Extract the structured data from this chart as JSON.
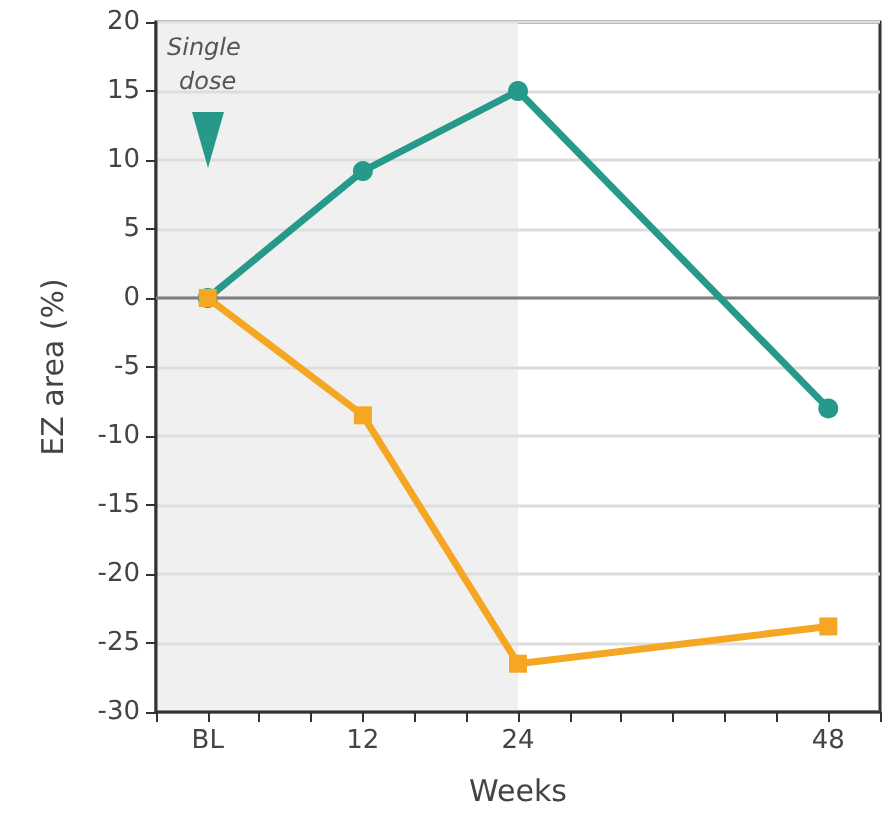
{
  "chart_data": {
    "type": "line",
    "xlabel": "Weeks",
    "ylabel": "EZ area (%)",
    "xlim": [
      -4,
      52
    ],
    "xticks": [
      {
        "value": -4,
        "label": null
      },
      {
        "value": 0,
        "label": "BL"
      },
      {
        "value": 4,
        "label": null
      },
      {
        "value": 8,
        "label": null
      },
      {
        "value": 12,
        "label": "12"
      },
      {
        "value": 16,
        "label": null
      },
      {
        "value": 20,
        "label": null
      },
      {
        "value": 24,
        "label": "24"
      },
      {
        "value": 28,
        "label": null
      },
      {
        "value": 32,
        "label": null
      },
      {
        "value": 36,
        "label": null
      },
      {
        "value": 40,
        "label": null
      },
      {
        "value": 44,
        "label": null
      },
      {
        "value": 48,
        "label": "48"
      },
      {
        "value": 52,
        "label": null
      }
    ],
    "ylim": [
      -30,
      20
    ],
    "yticks": [
      -30,
      -25,
      -20,
      -15,
      -10,
      -5,
      0,
      5,
      10,
      15,
      20
    ],
    "x": [
      0,
      12,
      24,
      48
    ],
    "series": [
      {
        "color": "#26998a",
        "marker": "circle",
        "values": [
          0,
          9.2,
          15,
          -8
        ]
      },
      {
        "color": "#f5a623",
        "marker": "square",
        "values": [
          0,
          -8.5,
          -26.5,
          -23.8
        ]
      }
    ],
    "ref_lines": [
      {
        "axis": "y",
        "value": 0,
        "color": "#808080"
      }
    ],
    "bands": [
      {
        "axis": "x",
        "from": -4,
        "to": 24,
        "color": "#f0f0f0"
      }
    ],
    "annotations": [
      "Single dose"
    ],
    "grid": "y",
    "line_style": "solid"
  }
}
